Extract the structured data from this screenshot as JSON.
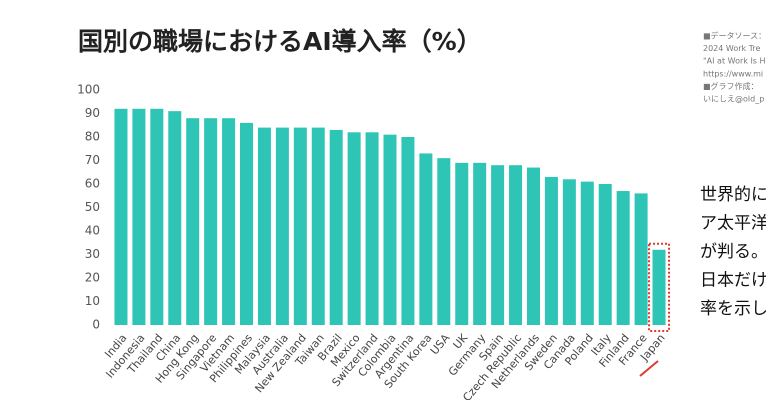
{
  "chart_data": {
    "type": "bar",
    "title": "国別の職場におけるAI導入率（%）",
    "categories": [
      "India",
      "Indonesia",
      "Thailand",
      "China",
      "Hong Kong",
      "Singapore",
      "Vietnam",
      "Philippines",
      "Malaysia",
      "Australia",
      "New Zealand",
      "Taiwan",
      "Brazil",
      "Mexico",
      "Switzerland",
      "Colombia",
      "Argentina",
      "South Korea",
      "USA",
      "UK",
      "Germany",
      "Spain",
      "Czech Republic",
      "Netherlands",
      "Sweden",
      "Canada",
      "Poland",
      "Italy",
      "Finland",
      "France",
      "Japan"
    ],
    "values": [
      92,
      92,
      92,
      91,
      88,
      88,
      88,
      86,
      84,
      84,
      84,
      84,
      83,
      82,
      82,
      81,
      80,
      73,
      71,
      69,
      69,
      68,
      68,
      67,
      63,
      62,
      61,
      60,
      57,
      56,
      32
    ],
    "color": "#2ec4b6",
    "ylim": [
      0,
      100
    ],
    "yticks": [
      0,
      10,
      20,
      30,
      40,
      50,
      60,
      70,
      80,
      90,
      100
    ],
    "grid": false
  },
  "side_notes": {
    "source_lines": [
      "■データソース：",
      "2024 Work Tre",
      "\"AI at Work Is H",
      "https://www.mi",
      "■グラフ作成：",
      "いにしえ@old_p"
    ],
    "body_lines": [
      "世界的に",
      "ア太平洋",
      "が判る。",
      "日本だけ",
      "率を示し"
    ]
  }
}
